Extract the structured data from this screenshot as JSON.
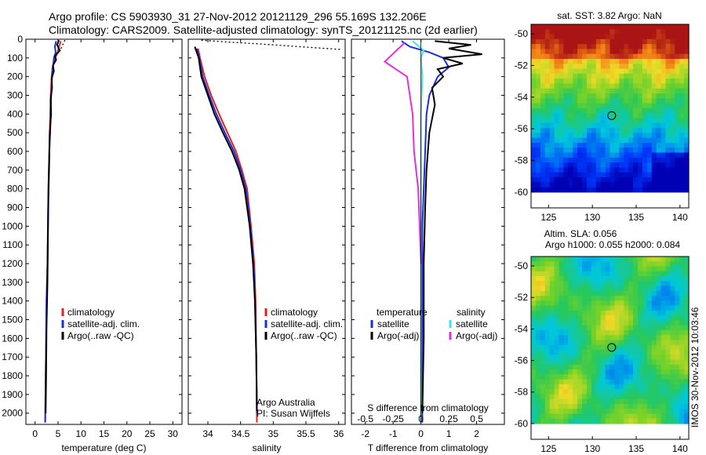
{
  "header": {
    "line1": "Argo profile: CS 5903930_31 27-Nov-2012 20121129_296 55.169S 132.206E",
    "line2": "Climatology: CARS2009. Satellite-adjusted climatology: synTS_20121125.nc (2d earlier)"
  },
  "colors": {
    "climatology": "#e8201c",
    "satellite": "#1a2ee0",
    "argo": "#000000",
    "sal_satellite": "#38e8e8",
    "sal_argo": "#e030e0"
  },
  "depth_axis": {
    "ticks": [
      0,
      100,
      200,
      300,
      400,
      500,
      600,
      700,
      800,
      900,
      1000,
      1100,
      1200,
      1300,
      1400,
      1500,
      1600,
      1700,
      1800,
      1900,
      2000
    ]
  },
  "chart_data": [
    {
      "type": "line",
      "id": "temperature",
      "xlabel": "temperature (deg C)",
      "xticks": [
        0,
        5,
        10,
        15,
        20,
        25,
        30
      ],
      "xlim": [
        -2,
        32
      ],
      "ylim": [
        0,
        2060
      ],
      "legend": {
        "placement": "lower-right",
        "entries": [
          "climatology",
          "satellite-adj. clim.",
          "Argo(..raw -QC)"
        ]
      },
      "series": [
        {
          "name": "climatology",
          "color": "#e8201c",
          "x": [
            5.6,
            5.2,
            4.9,
            4.4,
            3.8,
            3.6,
            3.4,
            3.3,
            3.2,
            3.1,
            2.9,
            2.8,
            2.7,
            2.5,
            2.4,
            2.3,
            2.2
          ],
          "y": [
            10,
            40,
            70,
            100,
            150,
            200,
            300,
            400,
            500,
            600,
            800,
            1000,
            1200,
            1400,
            1600,
            1800,
            2050
          ]
        },
        {
          "name": "satellite-adj. clim.",
          "color": "#1a2ee0",
          "x": [
            4.6,
            4.3,
            4.5,
            4.1,
            3.9,
            3.7,
            3.5,
            3.4,
            3.3,
            3.1,
            2.9,
            2.8,
            2.7,
            2.5,
            2.4,
            2.3,
            2.2
          ],
          "y": [
            10,
            40,
            70,
            100,
            150,
            200,
            300,
            400,
            500,
            600,
            800,
            1000,
            1200,
            1400,
            1600,
            1800,
            2050
          ]
        },
        {
          "name": "Argo(..raw -QC)",
          "color": "#000000",
          "x": [
            5.2,
            4.8,
            5.4,
            4.3,
            4.6,
            3.9,
            4.1,
            3.6,
            3.7,
            3.4,
            3.5,
            3.2,
            3.1,
            2.9,
            2.8,
            2.7,
            2.5,
            2.4,
            2.3
          ],
          "y": [
            5,
            30,
            60,
            90,
            110,
            140,
            170,
            210,
            260,
            320,
            400,
            500,
            650,
            850,
            1050,
            1300,
            1550,
            1800,
            2000
          ]
        },
        {
          "name": "",
          "color": "#000000",
          "dashed": true,
          "x": [
            6.5,
            6.2,
            5.8,
            5.5
          ],
          "y": [
            5,
            20,
            40,
            60
          ]
        }
      ]
    },
    {
      "type": "line",
      "id": "salinity",
      "xlabel": "salinity",
      "xticks": [
        34,
        34.5,
        35,
        35.5,
        36
      ],
      "xlim": [
        33.7,
        36.1
      ],
      "ylim": [
        0,
        2060
      ],
      "legend": {
        "placement": "lower-right",
        "entries": [
          "climatology",
          "satellite-adj. clim.",
          "Argo(..raw -QC)"
        ]
      },
      "annotation": [
        "Argo Australia",
        "PI: Susan Wijffels"
      ],
      "series": [
        {
          "name": "climatology",
          "color": "#e8201c",
          "x": [
            33.85,
            33.88,
            33.95,
            34.05,
            34.17,
            34.3,
            34.43,
            34.52,
            34.6,
            34.66,
            34.71,
            34.73,
            34.74,
            34.75
          ],
          "y": [
            50,
            100,
            200,
            300,
            400,
            500,
            600,
            700,
            800,
            1000,
            1200,
            1400,
            1700,
            2050
          ]
        },
        {
          "name": "satellite-adj. clim.",
          "color": "#1a2ee0",
          "x": [
            33.83,
            33.87,
            33.92,
            34.02,
            34.13,
            34.26,
            34.4,
            34.5,
            34.58,
            34.65,
            34.7,
            34.72,
            34.74,
            34.75
          ],
          "y": [
            50,
            100,
            200,
            300,
            400,
            500,
            600,
            700,
            800,
            1000,
            1200,
            1400,
            1700,
            2000
          ]
        },
        {
          "name": "Argo(..raw -QC)",
          "color": "#000000",
          "x": [
            33.8,
            33.86,
            33.9,
            34.0,
            34.1,
            34.23,
            34.37,
            34.48,
            34.56,
            34.64,
            34.69,
            34.72,
            34.74,
            34.75
          ],
          "y": [
            40,
            100,
            200,
            300,
            400,
            500,
            600,
            700,
            800,
            1000,
            1200,
            1400,
            1700,
            1990
          ]
        },
        {
          "name": "",
          "color": "#000000",
          "dashed": true,
          "x": [
            33.9,
            34.3,
            34.8,
            35.4,
            36.05
          ],
          "y": [
            5,
            15,
            25,
            40,
            55
          ]
        }
      ]
    },
    {
      "type": "line",
      "id": "difference",
      "xlabel": "T difference from climatology",
      "xticks": [
        -2,
        -1,
        0,
        1,
        2
      ],
      "xlim": [
        -2.5,
        3
      ],
      "xlabel_top": "S difference from climatology",
      "xticks_top": [
        "-0.5",
        "-0.25",
        "0",
        "0.25",
        "0.5"
      ],
      "ylim": [
        0,
        2060
      ],
      "legend": {
        "placement": "lower",
        "groups": [
          {
            "title": "temperature",
            "entries": [
              "satellite",
              "Argo(-adj)"
            ]
          },
          {
            "title": "salinity",
            "entries": [
              "satellite",
              "Argo(-adj)"
            ]
          }
        ]
      },
      "series": [
        {
          "name": "temperature satellite",
          "color": "#1a2ee0",
          "x": [
            -0.7,
            -0.4,
            0.3,
            0.8,
            1.0,
            0.6,
            0.3,
            0.2,
            0.15,
            0.1,
            0.05,
            0.05,
            0.05,
            0.05
          ],
          "y": [
            10,
            40,
            70,
            100,
            150,
            200,
            300,
            400,
            600,
            800,
            1000,
            1400,
            1800,
            2050
          ]
        },
        {
          "name": "temperature Argo(-adj)",
          "color": "#000000",
          "x": [
            0.5,
            1.8,
            1.0,
            2.2,
            0.8,
            1.5,
            0.6,
            0.8,
            0.4,
            0.5,
            0.3,
            0.2,
            0.15,
            0.1,
            0.1,
            0.05
          ],
          "y": [
            10,
            30,
            50,
            80,
            100,
            130,
            160,
            200,
            260,
            350,
            500,
            700,
            900,
            1200,
            1600,
            2000
          ]
        },
        {
          "name": "salinity satellite",
          "color": "#38e8e8",
          "x": [
            -0.3,
            0.1,
            0,
            0.05,
            0,
            0,
            0,
            0
          ],
          "y": [
            10,
            60,
            100,
            200,
            400,
            800,
            1400,
            2050
          ]
        },
        {
          "name": "salinity Argo(-adj)",
          "color": "#e030e0",
          "x": [
            -0.6,
            -1.3,
            -0.5,
            -0.3,
            -0.25,
            -0.1,
            -0.05,
            0
          ],
          "y": [
            20,
            120,
            200,
            400,
            600,
            800,
            1000,
            1200
          ]
        }
      ]
    },
    {
      "type": "heatmap",
      "id": "sst",
      "title": "sat. SST: 3.82  Argo: NaN",
      "xticks": [
        125,
        130,
        135,
        140
      ],
      "yticks": [
        -50,
        -52,
        -54,
        -56,
        -58,
        -60
      ],
      "xlim": [
        123,
        141
      ],
      "ylim": [
        -61,
        -49.4
      ],
      "marker": {
        "lon": 132.206,
        "lat": -55.169
      }
    },
    {
      "type": "heatmap",
      "id": "sla",
      "title": "Altim. SLA: 0.056",
      "subtitle": "Argo h1000: 0.055 h2000: 0.084",
      "xticks": [
        125,
        130,
        135,
        140
      ],
      "yticks": [
        -50,
        -52,
        -54,
        -56,
        -58,
        -60
      ],
      "xlim": [
        123,
        141
      ],
      "ylim": [
        -61,
        -49.4
      ],
      "marker": {
        "lon": 132.206,
        "lat": -55.169
      }
    }
  ],
  "credit": "IMOS 30-Nov-2012 10:03:46"
}
